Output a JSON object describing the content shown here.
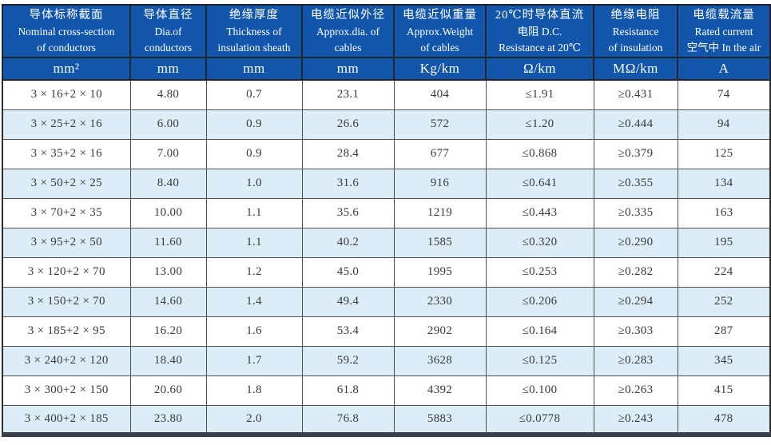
{
  "colors": {
    "header_bg": "#1256ac",
    "header_text": "#ffffff",
    "row_alt_bg": "#ddedf8",
    "row_bg": "#ffffff",
    "data_text": "#3a3a3a",
    "bottom_bar": "#3a4049"
  },
  "table": {
    "columns": [
      {
        "name": "nominal-cross-section",
        "lines": [
          "导体标称截面",
          "Nominal cross-section",
          "of conductors"
        ],
        "unit": "mm²"
      },
      {
        "name": "dia-of-conductors",
        "lines": [
          "导体直径",
          "Dia.of",
          "conductors"
        ],
        "unit": "mm"
      },
      {
        "name": "insulation-thickness",
        "lines": [
          "绝缘厚度",
          "Thickness of",
          "insulation sheath"
        ],
        "unit": "mm"
      },
      {
        "name": "approx-dia-of-cables",
        "lines": [
          "电缆近似外径",
          "Approx.dia. of",
          "cables"
        ],
        "unit": "mm"
      },
      {
        "name": "approx-weight",
        "lines": [
          "电缆近似重量",
          "Approx.Weight",
          "of cables"
        ],
        "unit": "Kg/km"
      },
      {
        "name": "dc-resistance-20c",
        "lines": [
          "20℃时导体直流",
          "电阻 D.C.",
          "Resistance at 20℃"
        ],
        "unit": "Ω/km"
      },
      {
        "name": "insulation-resistance",
        "lines": [
          "绝缘电阻",
          "Resistance",
          "of insulation"
        ],
        "unit": "MΩ/km"
      },
      {
        "name": "rated-current-in-air",
        "lines": [
          "电缆载流量",
          "Rated current",
          "空气中 In the air"
        ],
        "unit": "A"
      }
    ],
    "rows": [
      [
        "3 × 16+2 × 10",
        "4.80",
        "0.7",
        "23.1",
        "404",
        "≤1.91",
        "≥0.431",
        "74"
      ],
      [
        "3 × 25+2 × 16",
        "6.00",
        "0.9",
        "26.6",
        "572",
        "≤1.20",
        "≥0.444",
        "94"
      ],
      [
        "3 × 35+2 × 16",
        "7.00",
        "0.9",
        "28.4",
        "677",
        "≤0.868",
        "≥0.379",
        "125"
      ],
      [
        "3 × 50+2 × 25",
        "8.40",
        "1.0",
        "31.6",
        "916",
        "≤0.641",
        "≥0.355",
        "134"
      ],
      [
        "3 × 70+2 × 35",
        "10.00",
        "1.1",
        "35.6",
        "1219",
        "≤0.443",
        "≥0.335",
        "163"
      ],
      [
        "3 × 95+2 × 50",
        "11.60",
        "1.1",
        "40.2",
        "1585",
        "≤0.320",
        "≥0.290",
        "195"
      ],
      [
        "3 × 120+2 × 70",
        "13.00",
        "1.2",
        "45.0",
        "1995",
        "≤0.253",
        "≥0.282",
        "224"
      ],
      [
        "3 × 150+2 × 70",
        "14.60",
        "1.4",
        "49.4",
        "2330",
        "≤0.206",
        "≥0.294",
        "252"
      ],
      [
        "3 × 185+2 × 95",
        "16.20",
        "1.6",
        "53.4",
        "2902",
        "≤0.164",
        "≥0.303",
        "287"
      ],
      [
        "3 × 240+2 × 120",
        "18.40",
        "1.7",
        "59.2",
        "3628",
        "≤0.125",
        "≥0.283",
        "345"
      ],
      [
        "3 × 300+2 × 150",
        "20.60",
        "1.8",
        "61.8",
        "4392",
        "≤0.100",
        "≥0.263",
        "415"
      ],
      [
        "3 × 400+2 × 185",
        "23.80",
        "2.0",
        "76.8",
        "5883",
        "≤0.0778",
        "≥0.243",
        "478"
      ]
    ]
  }
}
